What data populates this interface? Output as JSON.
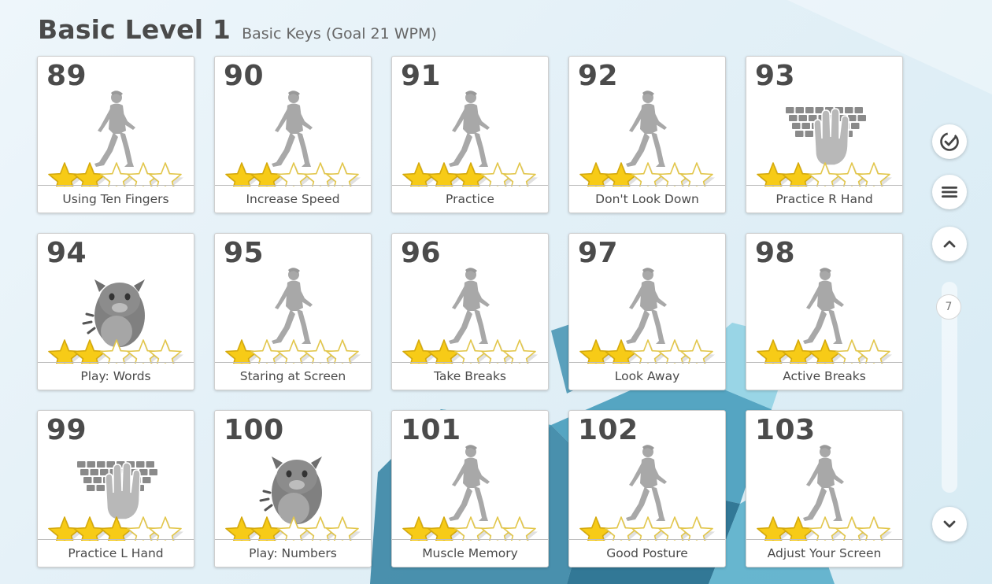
{
  "header": {
    "title": "Basic Level 1",
    "subtitle": "Basic Keys (Goal 21 WPM)"
  },
  "colors": {
    "star_gold": "#f7cb17",
    "icon_gray": "#a8a8a8",
    "text_dark": "#4a4a4a"
  },
  "lessons": [
    {
      "number": "89",
      "label": "Using Ten Fingers",
      "icon": "walking-person-icon",
      "stars_filled": 2
    },
    {
      "number": "90",
      "label": "Increase Speed",
      "icon": "walking-person-icon",
      "stars_filled": 2
    },
    {
      "number": "91",
      "label": "Practice",
      "icon": "walking-person-icon",
      "stars_filled": 3
    },
    {
      "number": "92",
      "label": "Don't Look Down",
      "icon": "walking-person-icon",
      "stars_filled": 2
    },
    {
      "number": "93",
      "label": "Practice R Hand",
      "icon": "keyboard-hand-icon",
      "stars_filled": 2
    },
    {
      "number": "94",
      "label": "Play: Words",
      "icon": "monster-game-icon",
      "stars_filled": 2
    },
    {
      "number": "95",
      "label": "Staring at Screen",
      "icon": "walking-person-icon",
      "stars_filled": 1
    },
    {
      "number": "96",
      "label": "Take Breaks",
      "icon": "walking-person-icon",
      "stars_filled": 2
    },
    {
      "number": "97",
      "label": "Look Away",
      "icon": "walking-person-icon",
      "stars_filled": 2
    },
    {
      "number": "98",
      "label": "Active Breaks",
      "icon": "walking-person-icon",
      "stars_filled": 3
    },
    {
      "number": "99",
      "label": "Practice L Hand",
      "icon": "keyboard-hand-icon",
      "stars_filled": 3
    },
    {
      "number": "100",
      "label": "Play: Numbers",
      "icon": "monster-game-icon",
      "stars_filled": 2
    },
    {
      "number": "101",
      "label": "Muscle Memory",
      "icon": "walking-person-icon",
      "stars_filled": 2
    },
    {
      "number": "102",
      "label": "Good Posture",
      "icon": "walking-person-icon",
      "stars_filled": 1
    },
    {
      "number": "103",
      "label": "Adjust Your Screen",
      "icon": "walking-person-icon",
      "stars_filled": 2
    }
  ],
  "sidebar": {
    "check_icon": "check-circle-icon",
    "menu_icon": "menu-icon",
    "up_icon": "chevron-up-icon",
    "down_icon": "chevron-down-icon",
    "scroll_position": "7"
  }
}
